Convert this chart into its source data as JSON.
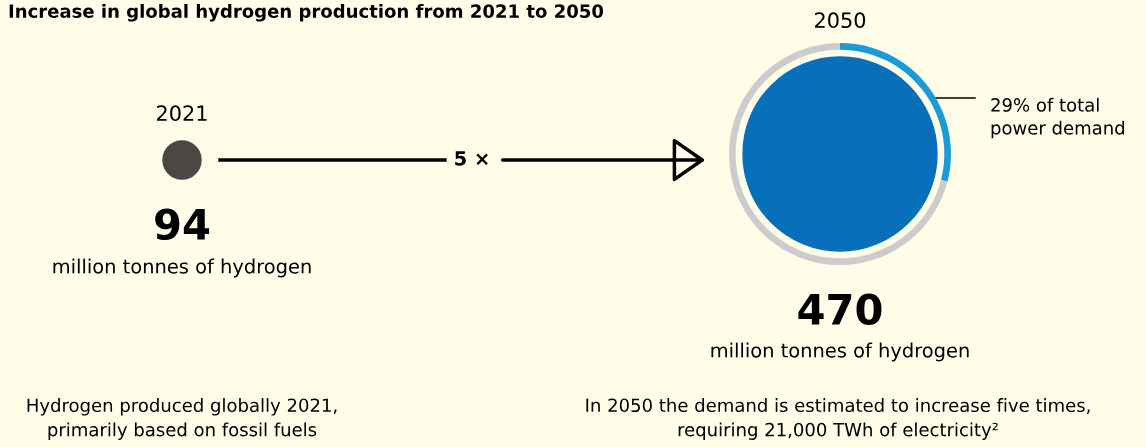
{
  "chart_data": [
    {
      "type": "other",
      "title": "Increase in global hydrogen production from 2021 to 2050",
      "categories": [
        "2021",
        "2050"
      ],
      "values": [
        94,
        470
      ],
      "colors": [
        "#4a4744",
        "#0870bb"
      ],
      "data_labels": true,
      "annotations": [
        "million tonnes of hydrogen",
        "million tonnes of hydrogen",
        "5 ×",
        "Hydrogen produced globally 2021,\nprimarily based on fossil fuels",
        "In 2050 the demand is estimated to increase five times,\nrequiring 21,000 TWh of electricity²"
      ]
    },
    {
      "type": "donut",
      "categories": [
        "29% of total\npower demand",
        null
      ],
      "values": [
        29,
        71
      ],
      "colors": [
        "#1a9ad6",
        "#cccccc"
      ]
    }
  ]
}
